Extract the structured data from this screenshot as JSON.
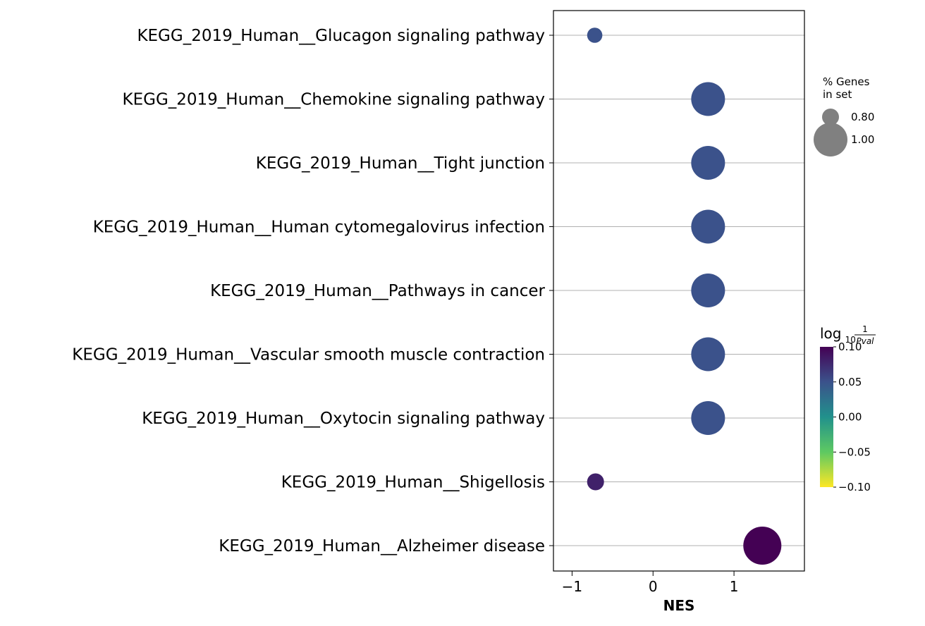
{
  "chart_data": {
    "type": "scatter",
    "xlabel": "NES",
    "ylabel": "",
    "title": "",
    "xlim": [
      -1.23,
      1.87
    ],
    "x_ticks": [
      {
        "value": -1,
        "label": "−1"
      },
      {
        "value": 0,
        "label": "0"
      },
      {
        "value": 1,
        "label": "1"
      }
    ],
    "grid": "horizontal",
    "categories": [
      "KEGG_2019_Human__Glucagon signaling pathway",
      "KEGG_2019_Human__Chemokine signaling pathway",
      "KEGG_2019_Human__Tight junction",
      "KEGG_2019_Human__Human cytomegalovirus infection",
      "KEGG_2019_Human__Pathways in cancer",
      "KEGG_2019_Human__Vascular smooth muscle contraction",
      "KEGG_2019_Human__Oxytocin signaling pathway",
      "KEGG_2019_Human__Shigellosis",
      "KEGG_2019_Human__Alzheimer disease"
    ],
    "points": [
      {
        "nes": -0.72,
        "genes_in_set": 0.78,
        "log10_inv_pval": 0.05
      },
      {
        "nes": 0.68,
        "genes_in_set": 1.0,
        "log10_inv_pval": 0.05
      },
      {
        "nes": 0.68,
        "genes_in_set": 1.0,
        "log10_inv_pval": 0.05
      },
      {
        "nes": 0.68,
        "genes_in_set": 1.0,
        "log10_inv_pval": 0.05
      },
      {
        "nes": 0.68,
        "genes_in_set": 1.0,
        "log10_inv_pval": 0.05
      },
      {
        "nes": 0.68,
        "genes_in_set": 1.0,
        "log10_inv_pval": 0.05
      },
      {
        "nes": 0.68,
        "genes_in_set": 1.0,
        "log10_inv_pval": 0.05
      },
      {
        "nes": -0.71,
        "genes_in_set": 0.8,
        "log10_inv_pval": 0.08
      },
      {
        "nes": 1.35,
        "genes_in_set": 1.05,
        "log10_inv_pval": 0.1
      }
    ],
    "size_legend": {
      "title_lines": [
        "% Genes",
        "in set"
      ],
      "entries": [
        {
          "value": 0.8,
          "label": "0.80"
        },
        {
          "value": 1.0,
          "label": "1.00"
        }
      ]
    },
    "colorbar": {
      "title_main": "log",
      "title_sub": "10",
      "title_num": "1",
      "title_den": "Pval",
      "range": [
        -0.1,
        0.1
      ],
      "colormap": "viridis",
      "colors": [
        "#fde725",
        "#5ec962",
        "#21918c",
        "#3b528b",
        "#440154"
      ],
      "ticks": [
        {
          "value": 0.1,
          "label": "0.10"
        },
        {
          "value": 0.05,
          "label": "0.05"
        },
        {
          "value": 0.0,
          "label": "0.00"
        },
        {
          "value": -0.05,
          "label": "−0.05"
        },
        {
          "value": -0.1,
          "label": "−0.10"
        }
      ]
    }
  }
}
